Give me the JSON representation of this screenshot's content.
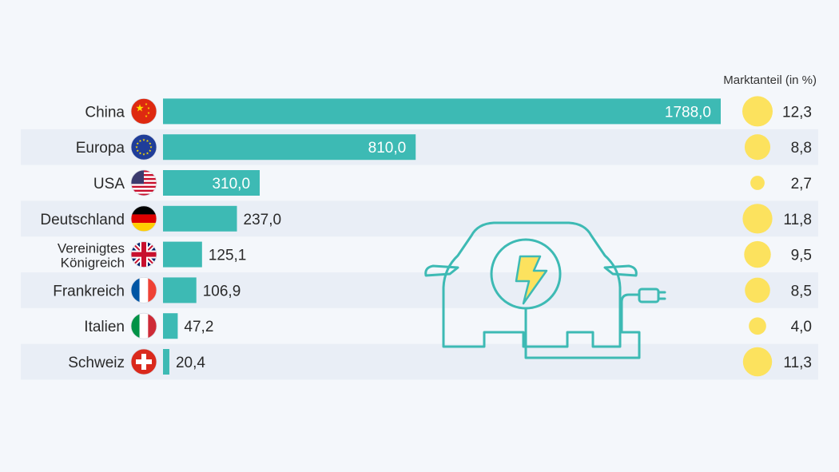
{
  "chart_data": {
    "type": "bar",
    "orientation": "horizontal",
    "categories": [
      "China",
      "Europa",
      "USA",
      "Deutschland",
      "Vereinigtes Königreich",
      "Frankreich",
      "Italien",
      "Schweiz"
    ],
    "category_lines": [
      [
        "China"
      ],
      [
        "Europa"
      ],
      [
        "USA"
      ],
      [
        "Deutschland"
      ],
      [
        "Vereinigtes",
        "Königreich"
      ],
      [
        "Frankreich"
      ],
      [
        "Italien"
      ],
      [
        "Schweiz"
      ]
    ],
    "flags": [
      "china-flag-icon",
      "eu-flag-icon",
      "usa-flag-icon",
      "germany-flag-icon",
      "uk-flag-icon",
      "france-flag-icon",
      "italy-flag-icon",
      "switzerland-flag-icon"
    ],
    "values": [
      1788.0,
      810.0,
      310.0,
      237.0,
      125.1,
      106.9,
      47.2,
      20.4
    ],
    "value_labels": [
      "1788,0",
      "810,0",
      "310,0",
      "237,0",
      "125,1",
      "106,9",
      "47,2",
      "20,4"
    ],
    "share": {
      "header": "Marktanteil (in %)",
      "values": [
        12.3,
        8.8,
        2.7,
        11.8,
        9.5,
        8.5,
        4.0,
        11.3
      ],
      "labels": [
        "12,3",
        "8,8",
        "2,7",
        "11,8",
        "9,5",
        "8,5",
        "4,0",
        "11,3"
      ]
    },
    "xlim": [
      0,
      1788.0
    ],
    "grid": false,
    "colors": {
      "bar": "#3dbab4",
      "bubble": "#fce25e",
      "row_band": "#e9eef6",
      "icon": "#3dbab4",
      "bolt": "#fce25e"
    }
  }
}
